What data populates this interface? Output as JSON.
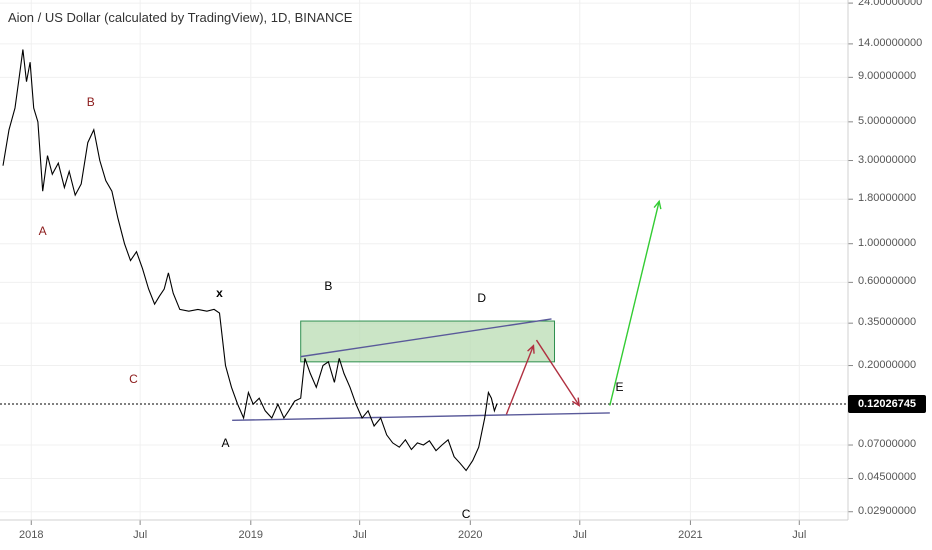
{
  "chart_title": "Aion / US Dollar (calculated by TradingView), 1D, BINANCE",
  "current_price": "0.12026745",
  "colors": {
    "price_line": "#000000",
    "wave_red": "#8b1a1a",
    "wave_black": "#000000",
    "trendline": "#5a5a9a",
    "box_fill": "#b9dcb3",
    "box_stroke": "#2f8f4f",
    "arrow_red": "#b03040",
    "arrow_green": "#33cc33"
  },
  "wave_labels": [
    {
      "text": "B",
      "color": "red",
      "date": "2018-04-10",
      "price": 6.5
    },
    {
      "text": "A",
      "color": "red",
      "date": "2018-01-20",
      "price": 1.18
    },
    {
      "text": "C",
      "color": "red",
      "date": "2018-06-20",
      "price": 0.167
    },
    {
      "text": "x",
      "color": "black",
      "date": "2018-11-10",
      "price": 0.52
    },
    {
      "text": "A",
      "color": "black",
      "date": "2018-11-20",
      "price": 0.072
    },
    {
      "text": "B",
      "color": "black",
      "date": "2019-05-10",
      "price": 0.57
    },
    {
      "text": "D",
      "color": "black",
      "date": "2020-01-20",
      "price": 0.49
    },
    {
      "text": "E",
      "color": "black",
      "date": "2020-09-05",
      "price": 0.15
    },
    {
      "text": "C",
      "color": "black",
      "date": "2019-12-25",
      "price": 0.028
    }
  ],
  "chart_data": {
    "type": "line",
    "title": "Aion / US Dollar (calculated by TradingView), 1D, BINANCE",
    "y_scale": "log",
    "ylim": [
      0.026,
      25
    ],
    "xlim": [
      "2017-11-10",
      "2021-09-20"
    ],
    "y_ticks": [
      "24.00000000",
      "14.00000000",
      "9.00000000",
      "5.00000000",
      "3.00000000",
      "1.80000000",
      "1.00000000",
      "0.60000000",
      "0.35000000",
      "0.20000000",
      "0.07000000",
      "0.04500000",
      "0.02900000"
    ],
    "y_tick_values": [
      24,
      14,
      9,
      5,
      3,
      1.8,
      1,
      0.6,
      0.35,
      0.2,
      0.07,
      0.045,
      0.029
    ],
    "x_ticks": [
      "2018",
      "Jul",
      "2019",
      "Jul",
      "2020",
      "Jul",
      "2021",
      "Jul"
    ],
    "x_tick_dates": [
      "2018-01-01",
      "2018-07-01",
      "2019-01-01",
      "2019-07-01",
      "2020-01-01",
      "2020-07-01",
      "2021-01-01",
      "2021-07-01"
    ],
    "series": [
      {
        "points": [
          [
            "2017-11-15",
            2.8
          ],
          [
            "2017-11-25",
            4.5
          ],
          [
            "2017-12-05",
            6.0
          ],
          [
            "2017-12-12",
            9.0
          ],
          [
            "2017-12-18",
            13.0
          ],
          [
            "2017-12-24",
            8.5
          ],
          [
            "2017-12-30",
            11.0
          ],
          [
            "2018-01-05",
            6.0
          ],
          [
            "2018-01-12",
            5.0
          ],
          [
            "2018-01-20",
            2.0
          ],
          [
            "2018-01-28",
            3.2
          ],
          [
            "2018-02-05",
            2.5
          ],
          [
            "2018-02-15",
            2.9
          ],
          [
            "2018-02-25",
            2.1
          ],
          [
            "2018-03-05",
            2.6
          ],
          [
            "2018-03-15",
            1.9
          ],
          [
            "2018-03-25",
            2.2
          ],
          [
            "2018-04-05",
            3.8
          ],
          [
            "2018-04-15",
            4.5
          ],
          [
            "2018-04-25",
            3.0
          ],
          [
            "2018-05-05",
            2.3
          ],
          [
            "2018-05-15",
            2.0
          ],
          [
            "2018-05-25",
            1.4
          ],
          [
            "2018-06-05",
            1.0
          ],
          [
            "2018-06-15",
            0.8
          ],
          [
            "2018-06-25",
            0.9
          ],
          [
            "2018-07-05",
            0.72
          ],
          [
            "2018-07-15",
            0.55
          ],
          [
            "2018-07-25",
            0.45
          ],
          [
            "2018-08-02",
            0.5
          ],
          [
            "2018-08-10",
            0.55
          ],
          [
            "2018-08-17",
            0.68
          ],
          [
            "2018-08-25",
            0.52
          ],
          [
            "2018-09-05",
            0.42
          ],
          [
            "2018-09-20",
            0.41
          ],
          [
            "2018-10-05",
            0.42
          ],
          [
            "2018-10-20",
            0.41
          ],
          [
            "2018-11-01",
            0.42
          ],
          [
            "2018-11-10",
            0.4
          ],
          [
            "2018-11-20",
            0.2
          ],
          [
            "2018-11-30",
            0.15
          ],
          [
            "2018-12-10",
            0.12
          ],
          [
            "2018-12-20",
            0.1
          ],
          [
            "2018-12-28",
            0.14
          ],
          [
            "2019-01-05",
            0.12
          ],
          [
            "2019-01-15",
            0.13
          ],
          [
            "2019-01-25",
            0.11
          ],
          [
            "2019-02-05",
            0.1
          ],
          [
            "2019-02-15",
            0.12
          ],
          [
            "2019-02-25",
            0.1
          ],
          [
            "2019-03-05",
            0.11
          ],
          [
            "2019-03-15",
            0.125
          ],
          [
            "2019-03-25",
            0.13
          ],
          [
            "2019-04-01",
            0.22
          ],
          [
            "2019-04-10",
            0.18
          ],
          [
            "2019-04-20",
            0.15
          ],
          [
            "2019-05-01",
            0.2
          ],
          [
            "2019-05-10",
            0.21
          ],
          [
            "2019-05-20",
            0.16
          ],
          [
            "2019-05-28",
            0.22
          ],
          [
            "2019-06-05",
            0.18
          ],
          [
            "2019-06-15",
            0.15
          ],
          [
            "2019-06-25",
            0.12
          ],
          [
            "2019-07-05",
            0.1
          ],
          [
            "2019-07-15",
            0.11
          ],
          [
            "2019-07-25",
            0.09
          ],
          [
            "2019-08-05",
            0.1
          ],
          [
            "2019-08-15",
            0.08
          ],
          [
            "2019-08-25",
            0.072
          ],
          [
            "2019-09-05",
            0.068
          ],
          [
            "2019-09-15",
            0.075
          ],
          [
            "2019-09-25",
            0.066
          ],
          [
            "2019-10-05",
            0.072
          ],
          [
            "2019-10-15",
            0.07
          ],
          [
            "2019-10-25",
            0.074
          ],
          [
            "2019-11-05",
            0.065
          ],
          [
            "2019-11-15",
            0.07
          ],
          [
            "2019-11-25",
            0.075
          ],
          [
            "2019-12-05",
            0.06
          ],
          [
            "2019-12-15",
            0.055
          ],
          [
            "2019-12-25",
            0.05
          ],
          [
            "2020-01-05",
            0.057
          ],
          [
            "2020-01-15",
            0.068
          ],
          [
            "2020-01-25",
            0.1
          ],
          [
            "2020-01-31",
            0.14
          ],
          [
            "2020-02-05",
            0.13
          ],
          [
            "2020-02-10",
            0.11
          ],
          [
            "2020-02-14",
            0.12
          ]
        ]
      }
    ],
    "drawings": {
      "green_box": {
        "date_start": "2019-03-25",
        "date_end": "2020-05-20",
        "price_low": 0.21,
        "price_high": 0.36
      },
      "upper_trendline": {
        "from": [
          "2019-03-25",
          0.225
        ],
        "to": [
          "2020-05-15",
          0.37
        ]
      },
      "lower_trendline": {
        "from": [
          "2018-12-01",
          0.097
        ],
        "to": [
          "2020-08-20",
          0.107
        ]
      },
      "red_arrow_up": {
        "from": [
          "2020-03-01",
          0.105
        ],
        "to": [
          "2020-04-15",
          0.26
        ]
      },
      "red_arrow_down": {
        "from": [
          "2020-04-20",
          0.28
        ],
        "to": [
          "2020-06-30",
          0.118
        ]
      },
      "green_arrow_up": {
        "from": [
          "2020-08-20",
          0.118
        ],
        "to": [
          "2020-11-10",
          1.75
        ]
      }
    }
  }
}
